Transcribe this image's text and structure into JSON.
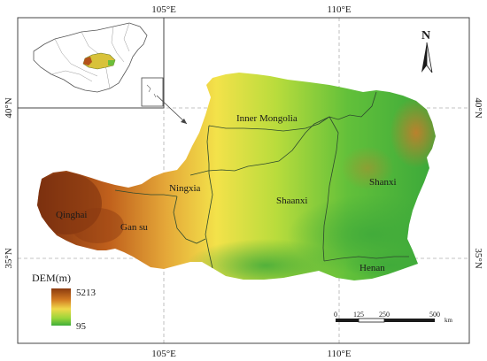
{
  "coordinates": {
    "top": [
      "105°E",
      "110°E"
    ],
    "bottom": [
      "105°E",
      "110°E"
    ],
    "left": [
      "40°N",
      "35°N"
    ],
    "right": [
      "40°N",
      "35°N"
    ]
  },
  "regions": [
    {
      "name": "Inner Mongolia"
    },
    {
      "name": "Ningxia"
    },
    {
      "name": "Qinghai"
    },
    {
      "name": "Gan su"
    },
    {
      "name": "Shaanxi"
    },
    {
      "name": "Shanxi"
    },
    {
      "name": "Henan"
    }
  ],
  "legend": {
    "title": "DEM(m)",
    "max": "5213",
    "min": "95",
    "colors": [
      "#8b3a0f",
      "#c8641e",
      "#e8b440",
      "#f2e64b",
      "#9bd63a",
      "#3fae3a"
    ]
  },
  "north_arrow": {
    "label": "N"
  },
  "scale_bar": {
    "ticks": [
      "0",
      "125",
      "250",
      "500"
    ],
    "unit": "km"
  },
  "colors": {
    "high": "#8b3a0f",
    "mid": "#e8c040",
    "low": "#43b03c"
  }
}
